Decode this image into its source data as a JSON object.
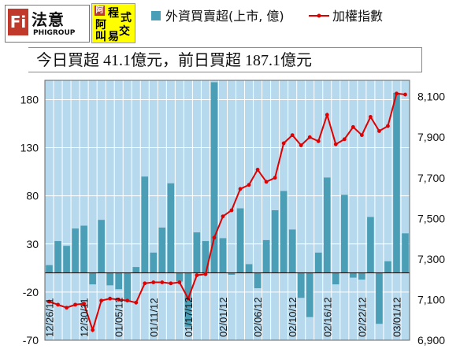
{
  "logos": {
    "brand_name": "法意",
    "brand_sub": "PHIGROUP",
    "brand_mark": "Fi",
    "badge_mark": "阿",
    "badge_glyphs": [
      "程",
      "式",
      "阿",
      "交",
      "叫",
      "易"
    ]
  },
  "subtitle": "今日買超 41.1億元，前日買超 187.1億元",
  "legend": {
    "bars": "外資買賣超(上市, 億)",
    "line": "加權指數"
  },
  "chart_data": {
    "type": "bar",
    "title": "",
    "colors": {
      "bar": "#4a9eb5",
      "line": "#e00000",
      "plot_bg": "#b6d9ee",
      "grid": "#ffffff"
    },
    "y_left": {
      "min": -70,
      "max": 200,
      "ticks": [
        "180",
        "130",
        "80",
        "30",
        "-20",
        "-70"
      ],
      "tick_values": [
        180,
        130,
        80,
        30,
        -20,
        -70
      ]
    },
    "y_right": {
      "min": 6900,
      "max": 8180,
      "ticks": [
        "8,100",
        "7,900",
        "7,700",
        "7,500",
        "7,300",
        "7,100",
        "6,900"
      ],
      "tick_values": [
        8100,
        7900,
        7700,
        7500,
        7300,
        7100,
        6900
      ]
    },
    "x_labels": [
      "12/26/11",
      "12/30/11",
      "01/05/12",
      "01/11/12",
      "01/17/12",
      "02/01/12",
      "02/06/12",
      "02/10/12",
      "02/16/12",
      "02/22/12",
      "03/01/12"
    ],
    "series": [
      {
        "name": "外資買賣超(上市, 億)",
        "values": [
          8,
          33,
          28,
          46,
          49,
          -12,
          55,
          -13,
          -17,
          -30,
          6,
          100,
          21,
          47,
          93,
          -9,
          -56,
          42,
          33,
          198,
          36,
          -2,
          67,
          9,
          -16,
          34,
          65,
          85,
          45,
          -26,
          -46,
          21,
          99,
          -12,
          81,
          -5,
          -7,
          58,
          -53,
          12,
          187,
          41
        ]
      },
      {
        "name": "加權指數",
        "values": [
          7090,
          7075,
          7060,
          7075,
          7080,
          6950,
          7095,
          7105,
          7100,
          7095,
          7085,
          7180,
          7185,
          7185,
          7180,
          7185,
          7105,
          7220,
          7225,
          7405,
          7510,
          7540,
          7645,
          7665,
          7740,
          7680,
          7700,
          7870,
          7910,
          7860,
          7900,
          7880,
          8010,
          7865,
          7890,
          7950,
          7910,
          8000,
          7930,
          7955,
          8115,
          8110
        ]
      }
    ]
  }
}
